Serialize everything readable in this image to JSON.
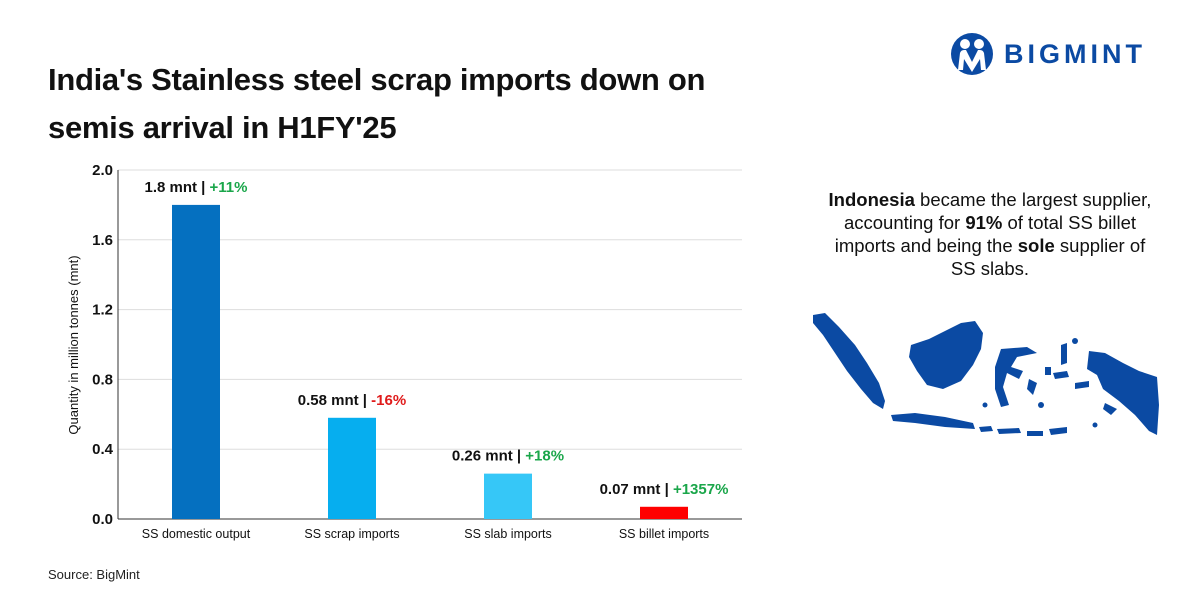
{
  "header": {
    "title": "India's Stainless steel scrap imports down on semis arrival in H1FY'25",
    "brand": "BIGMINT"
  },
  "callout": {
    "part1_bold": "Indonesia",
    "part2": " became the largest supplier, accounting for ",
    "part3_bold": "91%",
    "part4": " of total SS billet imports and being the ",
    "part5_bold": "sole",
    "part6": " supplier of SS slabs."
  },
  "source": "Source: BigMint",
  "colors": {
    "positive": "#1aa64a",
    "negative": "#e01b1b",
    "brand": "#0b4aa3",
    "map": "#0b4aa3"
  },
  "map_icon": "indonesia-map",
  "chart_data": {
    "type": "bar",
    "ylabel": "Quantity in million tonnes (mnt)",
    "xlabel": "",
    "ylim": [
      0,
      2.0
    ],
    "yticks": [
      "0.0",
      "0.4",
      "0.8",
      "1.2",
      "1.6",
      "2.0"
    ],
    "grid": true,
    "categories": [
      "SS domestic output",
      "SS scrap imports",
      "SS slab imports",
      "SS billet imports"
    ],
    "values": [
      1.8,
      0.58,
      0.26,
      0.07
    ],
    "bar_colors": [
      "#0570c0",
      "#06aeef",
      "#36c7f7",
      "#ff0000"
    ],
    "data_labels": [
      "1.8 mnt",
      "0.58 mnt",
      "0.26 mnt",
      "0.07 mnt"
    ],
    "changes": [
      "+11%",
      "-16%",
      "+18%",
      "+1357%"
    ],
    "change_colors": [
      "#1aa64a",
      "#e01b1b",
      "#1aa64a",
      "#1aa64a"
    ]
  }
}
